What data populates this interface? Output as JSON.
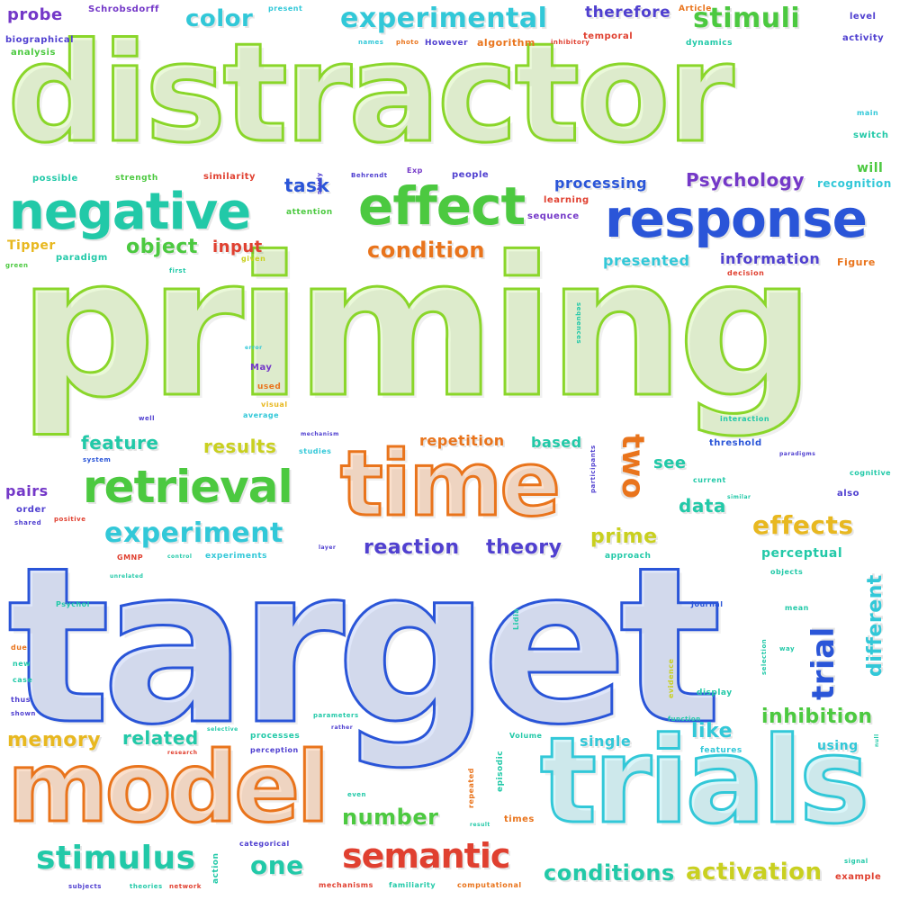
{
  "words": {
    "distractor": "distractor",
    "priming": "priming",
    "target": "target",
    "time": "time",
    "model": "model",
    "trials": "trials",
    "negative": "negative",
    "effect": "effect",
    "response": "response",
    "retrieval": "retrieval",
    "experimental": "experimental",
    "stimuli": "stimuli",
    "color": "color",
    "probe": "probe",
    "therefore": "therefore",
    "task": "task",
    "object": "object",
    "input": "input",
    "condition": "condition",
    "processing": "processing",
    "psychology": "Psychology",
    "presented": "presented",
    "information": "information",
    "recognition": "recognition",
    "will": "will",
    "feature": "feature",
    "results": "results",
    "repetition": "repetition",
    "based": "based",
    "two": "two",
    "see": "see",
    "data": "data",
    "experiment": "experiment",
    "reaction": "reaction",
    "theory": "theory",
    "prime": "prime",
    "effects": "effects",
    "trial": "trial",
    "different": "different",
    "memory": "memory",
    "related": "related",
    "inhibition": "inhibition",
    "single": "single",
    "like": "like",
    "number": "number",
    "stimulus": "stimulus",
    "one": "one",
    "semantic": "semantic",
    "conditions": "conditions",
    "activation": "activation",
    "pairs": "pairs",
    "tipper": "Tipper",
    "present": "present",
    "schrobsdorff": "Schrobsdorff",
    "article": "Article",
    "level": "level",
    "biographical": "biographical",
    "analysis": "analysis",
    "names": "names",
    "photo": "photo",
    "however": "However",
    "algorithm": "algorithm",
    "inhibitory": "inhibitory",
    "temporal": "temporal",
    "dynamics": "dynamics",
    "activity": "activity",
    "main": "main",
    "switch": "switch",
    "possible": "possible",
    "strength": "strength",
    "similarity": "similarity",
    "study": "study",
    "behrendt": "Behrendt",
    "exp": "Exp",
    "people": "people",
    "learning": "learning",
    "sequence": "sequence",
    "attention": "attention",
    "paradigm": "paradigm",
    "given": "given",
    "green": "green",
    "first": "first",
    "decision": "decision",
    "figure": "Figure",
    "sequences": "sequences",
    "error": "error",
    "may": "May",
    "used": "used",
    "visual": "visual",
    "average": "average",
    "well": "well",
    "interaction": "interaction",
    "mechanism": "mechanism",
    "studies": "studies",
    "system": "system",
    "participants": "participants",
    "threshold": "threshold",
    "paradigms": "paradigms",
    "cognitive": "cognitive",
    "also": "also",
    "order": "order",
    "shared": "shared",
    "positive": "positive",
    "current": "current",
    "similar": "similar",
    "layer": "layer",
    "gmnp": "GMNP",
    "control": "control",
    "experiments": "experiments",
    "approach": "approach",
    "perceptual": "perceptual",
    "objects": "objects",
    "unrelated": "unrelated",
    "psychol": "Psychol",
    "lidia": "Lidia",
    "journal": "Journal",
    "mean": "mean",
    "due": "due",
    "new": "new",
    "case": "case",
    "thus": "thus",
    "shown": "shown",
    "selection": "selection",
    "way": "way",
    "evidence": "evidence",
    "display": "display",
    "function": "function",
    "parameters": "parameters",
    "selective": "selective",
    "rather": "rather",
    "processes": "processes",
    "perception": "perception",
    "features": "features",
    "using": "using",
    "research": "research",
    "volume": "Volume",
    "episodic": "episodic",
    "even": "even",
    "repeated": "repeated",
    "times": "times",
    "result": "result",
    "categorical": "categorical",
    "action": "action",
    "subjects": "subjects",
    "theories": "theories",
    "network": "network",
    "mechanisms": "mechanisms",
    "familiarity": "familiarity",
    "computational": "computational",
    "signal": "signal",
    "example": "example",
    "null": "null"
  }
}
